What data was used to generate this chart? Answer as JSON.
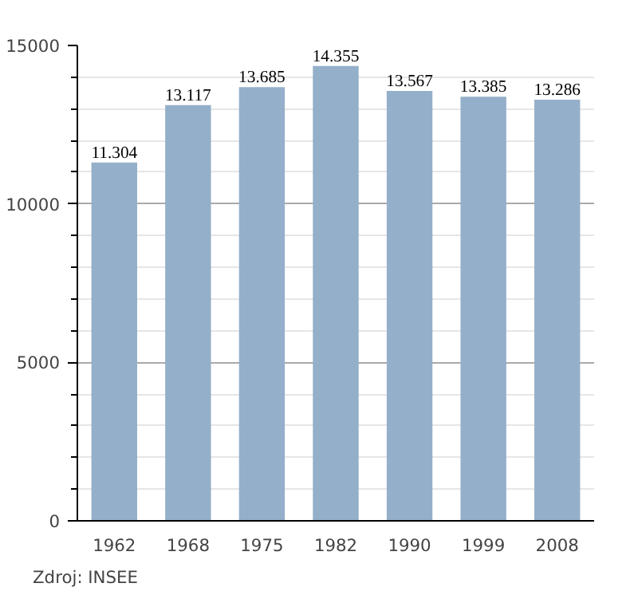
{
  "chart_data": {
    "type": "bar",
    "categories": [
      "1962",
      "1968",
      "1975",
      "1982",
      "1990",
      "1999",
      "2008"
    ],
    "values": [
      11304,
      13117,
      13685,
      14355,
      13567,
      13385,
      13286
    ],
    "value_labels": [
      "11.304",
      "13.117",
      "13.685",
      "14.355",
      "13.567",
      "13.385",
      "13.286"
    ],
    "color": "#94afc9",
    "ylim": [
      0,
      15000
    ],
    "yticks": [
      0,
      {
        "value": 1000,
        "label": null
      },
      {
        "value": 2000,
        "label": null
      },
      {
        "value": 3000,
        "label": null
      },
      {
        "value": 4000,
        "label": null
      },
      5000,
      {
        "value": 6000,
        "label": null
      },
      {
        "value": 7000,
        "label": null
      },
      {
        "value": 8000,
        "label": null
      },
      {
        "value": 9000,
        "label": null
      },
      10000,
      {
        "value": 11000,
        "label": null
      },
      {
        "value": 12000,
        "label": null
      },
      {
        "value": 13000,
        "label": null
      },
      {
        "value": 14000,
        "label": null
      },
      15000
    ],
    "grid": "y",
    "annotations": [
      "Zdroj: INSEE"
    ]
  }
}
